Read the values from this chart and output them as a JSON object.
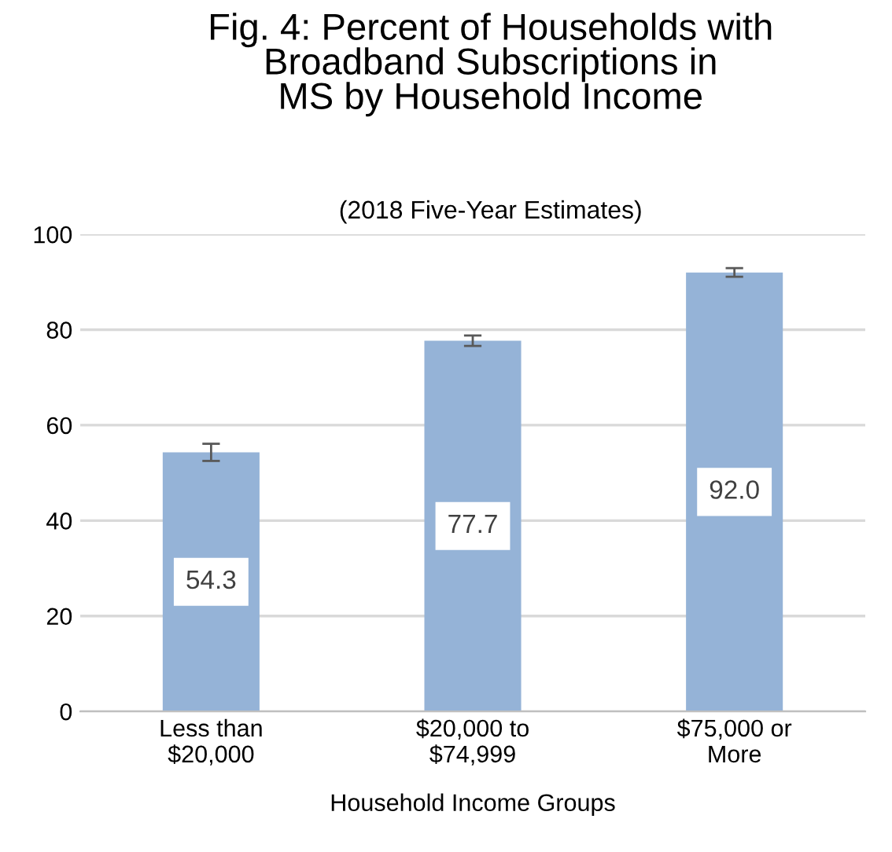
{
  "chart_data": {
    "type": "bar",
    "title": "Fig. 4: Percent of Households with\nBroadband Subscriptions in\nMS by Household Income",
    "subtitle": "(2018 Five-Year Estimates)",
    "xlabel": "Household Income Groups",
    "categories": [
      "Less than\n$20,000",
      "$20,000 to\n$74,999",
      "$75,000 or\nMore"
    ],
    "values": [
      54.3,
      77.7,
      92.0
    ],
    "color": "#95b3d7",
    "errors": [
      1.8,
      1.1,
      0.9
    ],
    "value_labels": [
      "54.3",
      "77.7",
      "92.0"
    ],
    "ylim": [
      0,
      100
    ],
    "yticks": [
      0,
      20,
      40,
      60,
      80,
      100
    ],
    "grid": "y"
  }
}
